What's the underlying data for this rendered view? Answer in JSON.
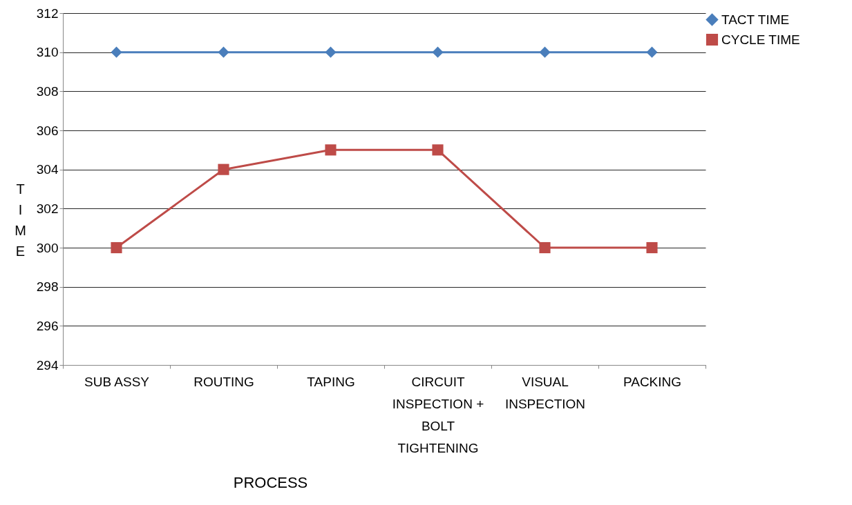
{
  "chart_data": {
    "type": "line",
    "xlabel": "PROCESS",
    "ylabel": "TIME",
    "categories": [
      "SUB ASSY",
      "ROUTING",
      "TAPING",
      "CIRCUIT INSPECTION + BOLT TIGHTENING",
      "VISUAL INSPECTION",
      "PACKING"
    ],
    "series": [
      {
        "name": "TACT TIME",
        "color": "#4a7ebb",
        "marker": "diamond",
        "values": [
          310,
          310,
          310,
          310,
          310,
          310
        ]
      },
      {
        "name": "CYCLE TIME",
        "color": "#be4b48",
        "marker": "square",
        "values": [
          300,
          304,
          305,
          305,
          300,
          300
        ]
      }
    ],
    "ylim": [
      294,
      312
    ],
    "yticks": [
      294,
      296,
      298,
      300,
      302,
      304,
      306,
      308,
      310,
      312
    ],
    "grid": "y",
    "legend": "right",
    "line_style": "solid"
  }
}
